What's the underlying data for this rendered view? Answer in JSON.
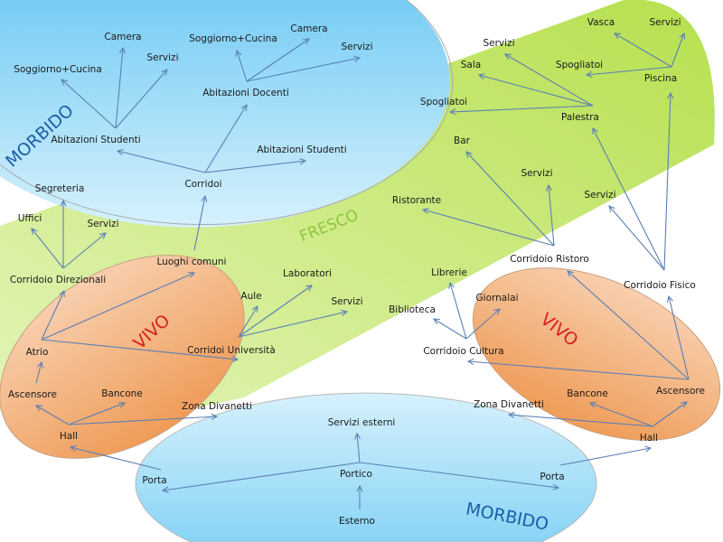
{
  "regions": [
    {
      "id": "morbido_top",
      "label": "MORBIDO",
      "color": "#1a5fa8"
    },
    {
      "id": "fresco",
      "label": "FRESCO",
      "color": "#8cc63e"
    },
    {
      "id": "vivo_left",
      "label": "VIVO",
      "color": "#d42020"
    },
    {
      "id": "vivo_right",
      "label": "VIVO",
      "color": "#d42020"
    },
    {
      "id": "morbido_bottom",
      "label": "MORBIDO",
      "color": "#1a5fa8"
    }
  ],
  "colors": {
    "arrow": "#5a7fb5",
    "morbido_fill": "#8ed6f7",
    "fresco_fill": "#c8ea80",
    "vivo_fill": "#f3a868"
  },
  "nodes": [
    "Camera",
    "Servizi",
    "Soggiorno+Cucina",
    "Abitazioni Studenti",
    "Soggiorno+Cucina",
    "Camera",
    "Servizi",
    "Abitazioni Docenti",
    "Abitazioni Studenti",
    "Corridoi",
    "Segreteria",
    "Uffici",
    "Servizi",
    "Corridoio Direzionali",
    "Luoghi comuni",
    "Laboratori",
    "Aule",
    "Servizi",
    "Atrio",
    "Corridoi Università",
    "Ascensore",
    "Bancone",
    "Zona Divanetti",
    "Hall",
    "Servizi esterni",
    "Porta",
    "Portico",
    "Esterno",
    "Porta",
    "Vasca",
    "Servizi",
    "Spogliatoi",
    "Piscina",
    "Servizi",
    "Sala",
    "Spogliatoi",
    "Palestra",
    "Bar",
    "Servizi",
    "Ristorante",
    "Servizi",
    "Corridoio Ristoro",
    "Librerie",
    "Corridoio Fisico",
    "Giornalai",
    "Biblioteca",
    "Corridoio Cultura",
    "Ascensore",
    "Bancone",
    "Zona Divanetti",
    "Hall"
  ],
  "edges": [
    [
      3,
      0
    ],
    [
      3,
      1
    ],
    [
      3,
      2
    ],
    [
      7,
      4
    ],
    [
      7,
      5
    ],
    [
      7,
      6
    ],
    [
      9,
      3
    ],
    [
      9,
      7
    ],
    [
      9,
      8
    ],
    [
      14,
      9
    ],
    [
      13,
      10
    ],
    [
      13,
      11
    ],
    [
      13,
      12
    ],
    [
      18,
      13
    ],
    [
      18,
      14
    ],
    [
      18,
      19
    ],
    [
      19,
      16
    ],
    [
      19,
      15
    ],
    [
      19,
      17
    ],
    [
      20,
      18
    ],
    [
      23,
      20
    ],
    [
      23,
      21
    ],
    [
      23,
      22
    ],
    [
      25,
      23
    ],
    [
      26,
      25
    ],
    [
      26,
      24
    ],
    [
      26,
      28
    ],
    [
      27,
      26
    ],
    [
      28,
      50
    ],
    [
      50,
      48
    ],
    [
      50,
      49
    ],
    [
      50,
      47
    ],
    [
      47,
      46
    ],
    [
      47,
      41
    ],
    [
      47,
      43
    ],
    [
      46,
      42
    ],
    [
      46,
      44
    ],
    [
      46,
      45
    ],
    [
      41,
      39
    ],
    [
      41,
      37
    ],
    [
      41,
      38
    ],
    [
      43,
      40
    ],
    [
      43,
      36
    ],
    [
      43,
      32
    ],
    [
      36,
      33
    ],
    [
      36,
      34
    ],
    [
      36,
      35
    ],
    [
      32,
      29
    ],
    [
      32,
      30
    ],
    [
      32,
      31
    ]
  ]
}
